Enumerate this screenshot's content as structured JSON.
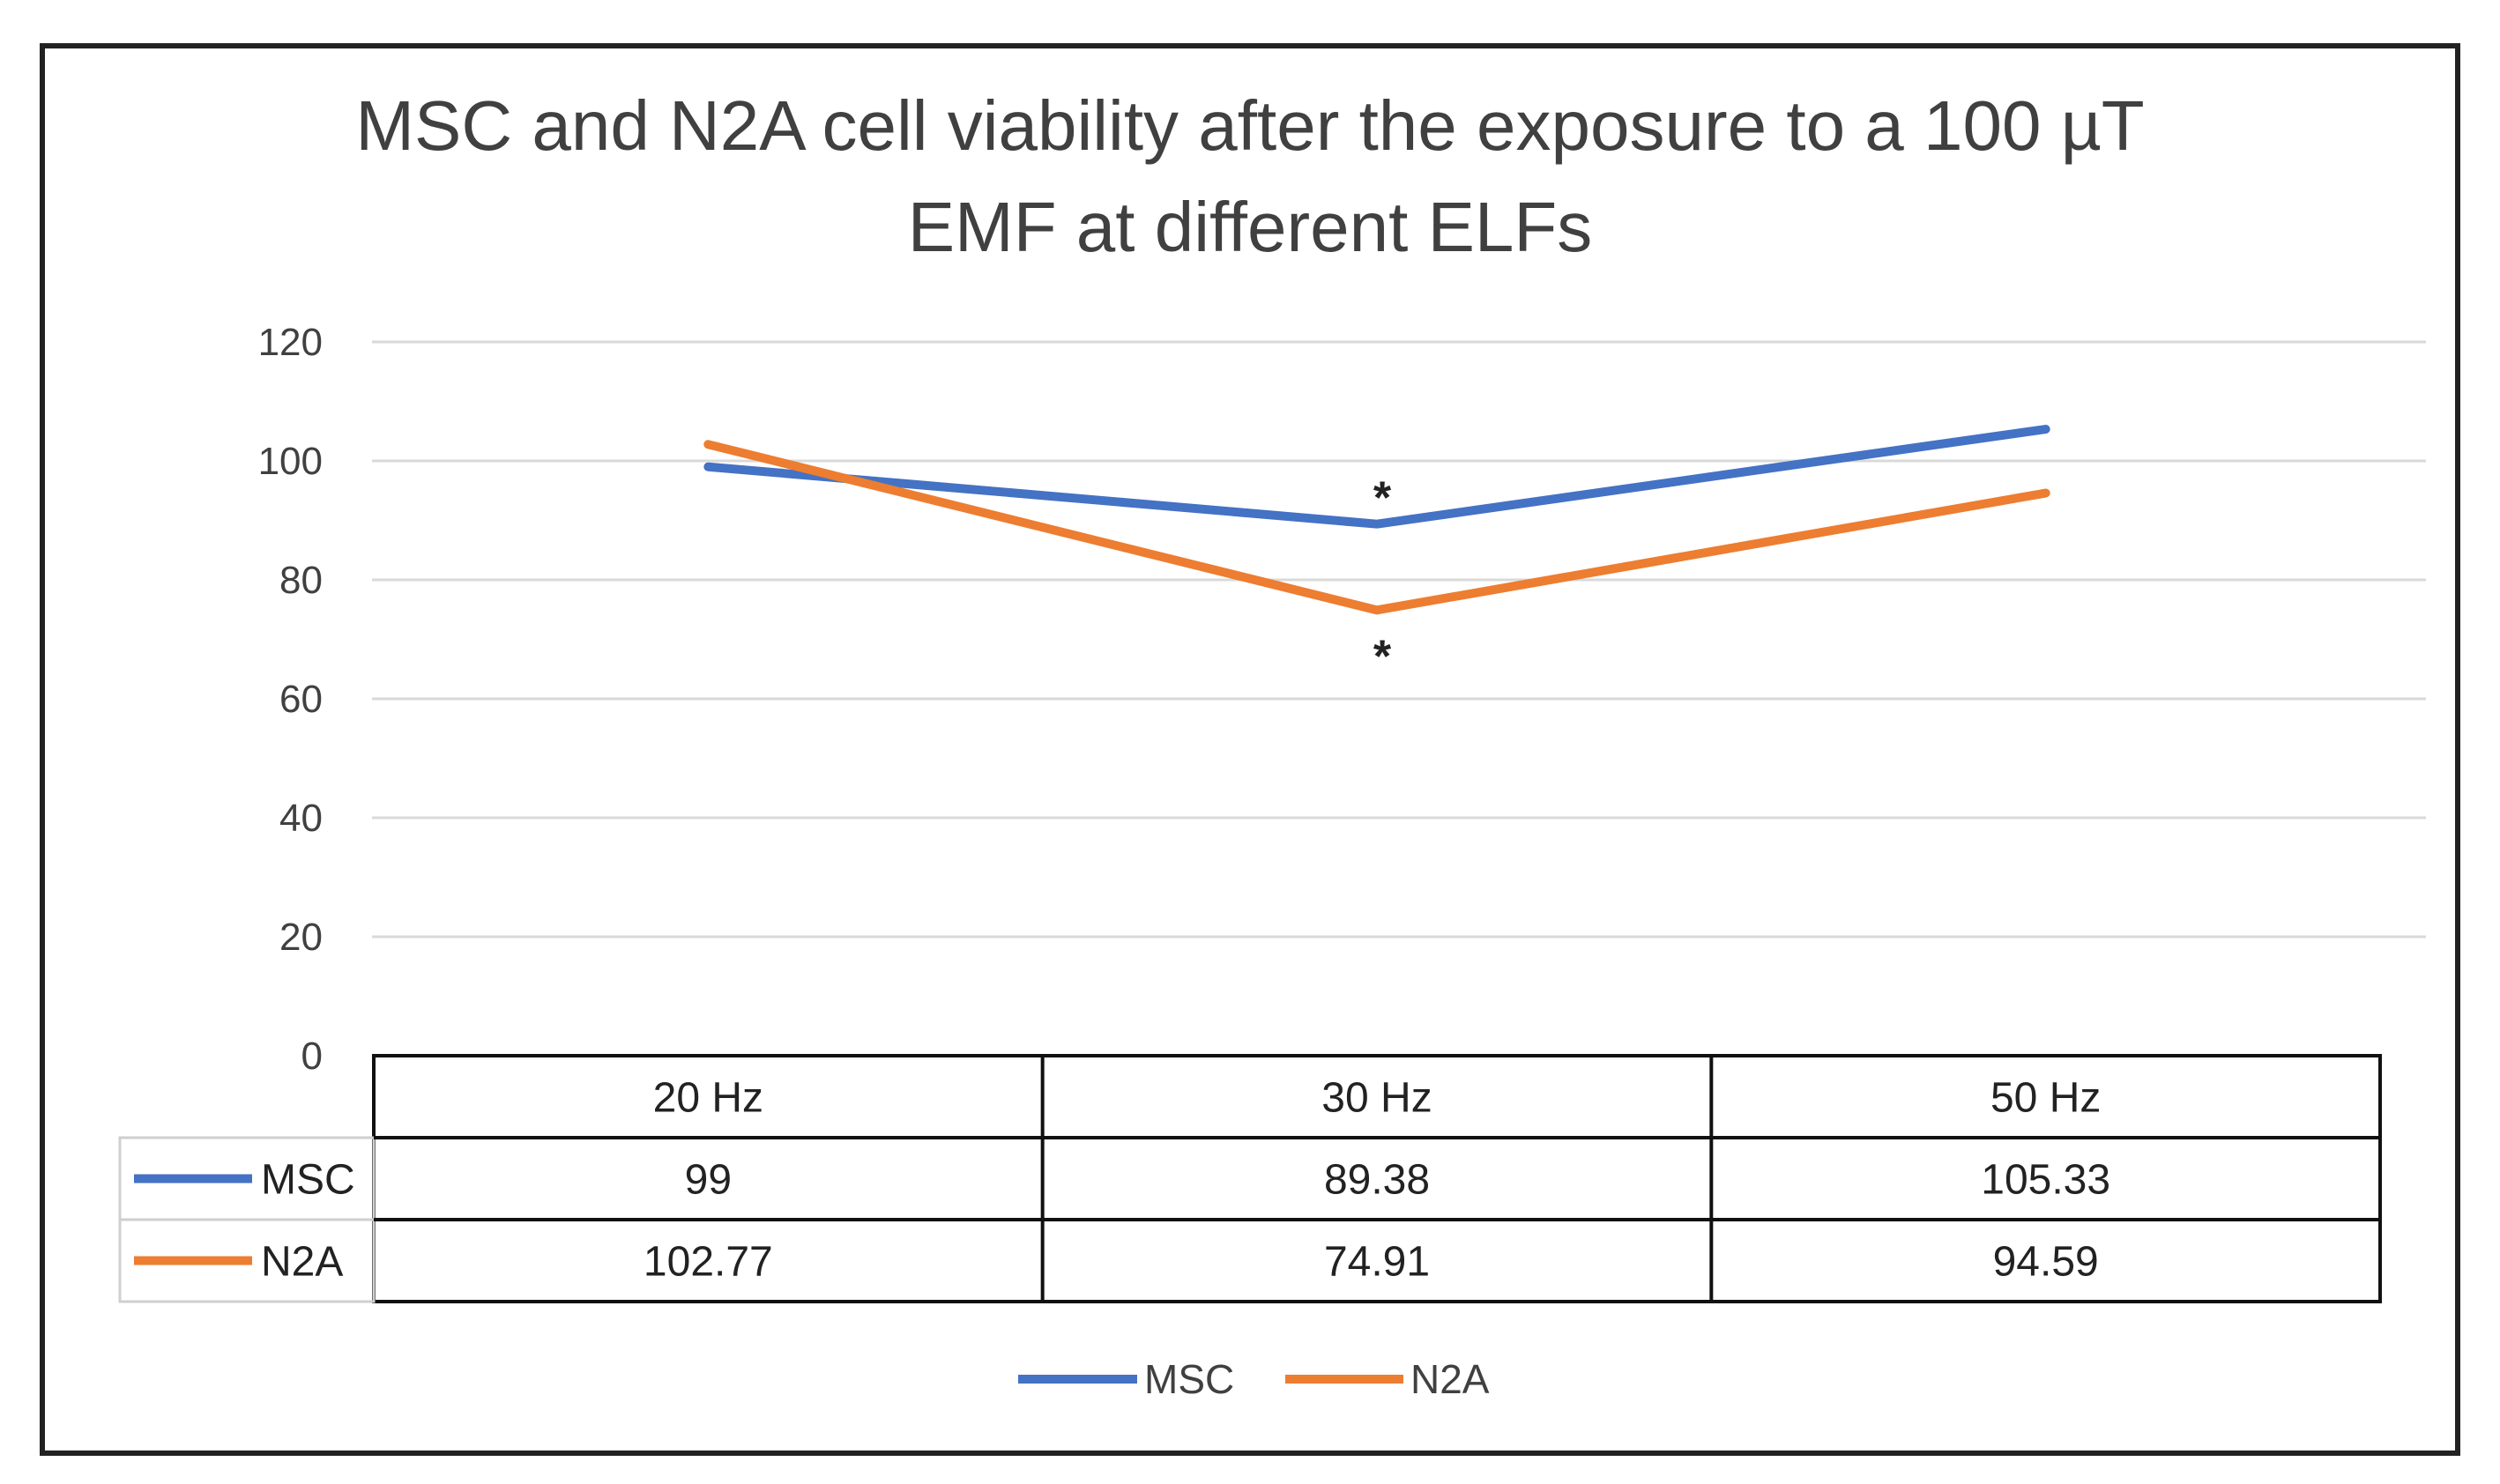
{
  "chart_data": {
    "type": "line",
    "title_lines": [
      "MSC and N2A cell viability after the exposure to a 100 µT",
      "EMF at different ELFs"
    ],
    "categories": [
      "20 Hz",
      "30 Hz",
      "50 Hz"
    ],
    "series": [
      {
        "name": "MSC",
        "color": "#4472C4",
        "values": [
          99,
          89.38,
          105.33
        ],
        "labels": [
          "99",
          "89.38",
          "105.33"
        ]
      },
      {
        "name": "N2A",
        "color": "#ED7D31",
        "values": [
          102.77,
          74.91,
          94.59
        ],
        "labels": [
          "102.77",
          "74.91",
          "94.59"
        ]
      }
    ],
    "ylim": [
      0,
      120
    ],
    "yticks": [
      "0",
      "20",
      "40",
      "60",
      "80",
      "100",
      "120"
    ],
    "ytick_values": [
      0,
      20,
      40,
      60,
      80,
      100,
      120
    ],
    "grid": true,
    "legend_placement": "bottom-center",
    "data_table": true,
    "annotations": [
      {
        "text": "*",
        "series": "MSC",
        "category": "30 Hz",
        "position": "above"
      },
      {
        "text": "*",
        "series": "N2A",
        "category": "30 Hz",
        "position": "below"
      }
    ]
  }
}
